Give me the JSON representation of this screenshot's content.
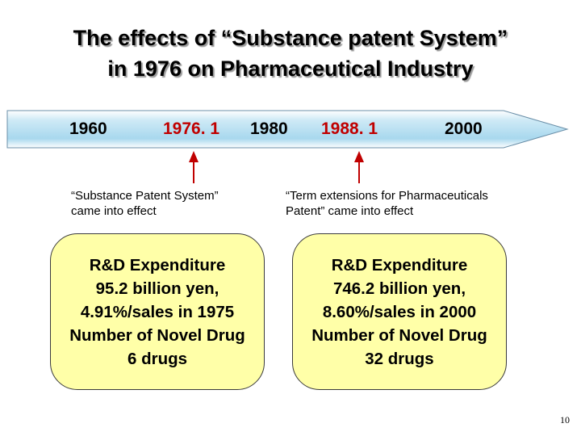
{
  "slide": {
    "title_line1": "The effects of “Substance patent System”",
    "title_line2": "in 1976 on Pharmaceutical Industry",
    "page_number": "10"
  },
  "timeline": {
    "labels": [
      "1960",
      "1976. 1",
      "1980",
      "1988. 1",
      "2000"
    ],
    "arrow_color": "#c00000",
    "bar_fill": "#cce8f4"
  },
  "events": [
    {
      "caption_line1": "“Substance Patent System”",
      "caption_line2": "came into effect"
    },
    {
      "caption_line1": "“Term extensions for Pharmaceuticals",
      "caption_line2": "Patent” came into effect"
    }
  ],
  "boxes": [
    {
      "lines": [
        "R&D Expenditure",
        "95.2 billion yen,",
        "4.91%/sales in 1975",
        "Number of Novel Drug",
        "6 drugs"
      ]
    },
    {
      "lines": [
        "R&D Expenditure",
        "746.2 billion yen,",
        "8.60%/sales in 2000",
        "Number of Novel Drug",
        "32 drugs"
      ]
    }
  ],
  "box_fill": "#ffffa8"
}
